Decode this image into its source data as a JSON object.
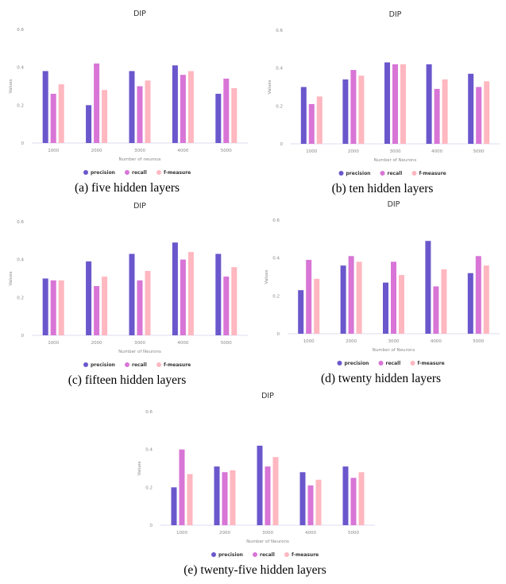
{
  "colors": {
    "precision": "#6a57cc",
    "recall": "#d875d6",
    "f-measure": "#ffb7c0"
  },
  "chart_data": [
    {
      "type": "bar",
      "title": "DIP",
      "caption": "(a) five hidden layers",
      "xlabel": "Number of neurous",
      "ylabel": "Values",
      "ylim": [
        0,
        0.6
      ],
      "yticks": [
        "0",
        "0.2",
        "0.4",
        "0.6"
      ],
      "ytick_values": [
        0,
        0.2,
        0.4,
        0.6
      ],
      "categories": [
        "1000",
        "2000",
        "3000",
        "4000",
        "5000"
      ],
      "legend_position": "bottom-center",
      "series": [
        {
          "name": "precision",
          "values": [
            0.38,
            0.2,
            0.38,
            0.41,
            0.26
          ]
        },
        {
          "name": "recall",
          "values": [
            0.26,
            0.42,
            0.3,
            0.36,
            0.34
          ]
        },
        {
          "name": "f-measure",
          "values": [
            0.31,
            0.28,
            0.33,
            0.38,
            0.29
          ]
        }
      ]
    },
    {
      "type": "bar",
      "title": "DIP",
      "caption": "(b) ten hidden layers",
      "xlabel": "Number of Neurons",
      "ylabel": "Values",
      "ylim": [
        0,
        0.6
      ],
      "yticks": [
        "0",
        "0.2",
        "0.4",
        "0.6"
      ],
      "ytick_values": [
        0,
        0.2,
        0.4,
        0.6
      ],
      "categories": [
        "1000",
        "2000",
        "3000",
        "4000",
        "5000"
      ],
      "legend_position": "bottom-center",
      "series": [
        {
          "name": "precision",
          "values": [
            0.3,
            0.34,
            0.43,
            0.42,
            0.37
          ]
        },
        {
          "name": "recall",
          "values": [
            0.21,
            0.39,
            0.42,
            0.29,
            0.3
          ]
        },
        {
          "name": "f-measure",
          "values": [
            0.25,
            0.36,
            0.42,
            0.34,
            0.33
          ]
        }
      ]
    },
    {
      "type": "bar",
      "title": "DIP",
      "caption": "(c) fifteen hidden layers",
      "xlabel": "Number of Neurons",
      "ylabel": "Values",
      "ylim": [
        0,
        0.6
      ],
      "yticks": [
        "0",
        "0.2",
        "0.4",
        "0.6"
      ],
      "ytick_values": [
        0,
        0.2,
        0.4,
        0.6
      ],
      "categories": [
        "1000",
        "2000",
        "3000",
        "4000",
        "5000"
      ],
      "legend_position": "bottom-center",
      "series": [
        {
          "name": "precision",
          "values": [
            0.3,
            0.39,
            0.43,
            0.49,
            0.43
          ]
        },
        {
          "name": "recall",
          "values": [
            0.29,
            0.26,
            0.29,
            0.4,
            0.31
          ]
        },
        {
          "name": "f-measure",
          "values": [
            0.29,
            0.31,
            0.34,
            0.44,
            0.36
          ]
        }
      ]
    },
    {
      "type": "bar",
      "title": "DIP",
      "caption": "(d) twenty hidden layers",
      "xlabel": "Number of Neurons",
      "ylabel": "Values",
      "ylim": [
        0,
        0.6
      ],
      "yticks": [
        "0",
        "0.2",
        "0.4",
        "0.6"
      ],
      "ytick_values": [
        0,
        0.2,
        0.4,
        0.6
      ],
      "categories": [
        "1000",
        "2000",
        "3000",
        "4000",
        "5000"
      ],
      "legend_position": "bottom-center",
      "series": [
        {
          "name": "precision",
          "values": [
            0.23,
            0.36,
            0.27,
            0.49,
            0.32
          ]
        },
        {
          "name": "recall",
          "values": [
            0.39,
            0.41,
            0.38,
            0.25,
            0.41
          ]
        },
        {
          "name": "f-measure",
          "values": [
            0.29,
            0.38,
            0.31,
            0.34,
            0.36
          ]
        }
      ]
    },
    {
      "type": "bar",
      "title": "DIP",
      "caption": "(e) twenty-five hidden layers",
      "xlabel": "Number of Neurons",
      "ylabel": "Values",
      "ylim": [
        0,
        0.6
      ],
      "yticks": [
        "0",
        "0.2",
        "0.4",
        "0.6"
      ],
      "ytick_values": [
        0,
        0.2,
        0.4,
        0.6
      ],
      "categories": [
        "1000",
        "2000",
        "3000",
        "4000",
        "5000"
      ],
      "legend_position": "bottom-center",
      "series": [
        {
          "name": "precision",
          "values": [
            0.2,
            0.31,
            0.42,
            0.28,
            0.31
          ]
        },
        {
          "name": "recall",
          "values": [
            0.4,
            0.28,
            0.31,
            0.21,
            0.25
          ]
        },
        {
          "name": "f-measure",
          "values": [
            0.27,
            0.29,
            0.36,
            0.24,
            0.28
          ]
        }
      ]
    }
  ]
}
